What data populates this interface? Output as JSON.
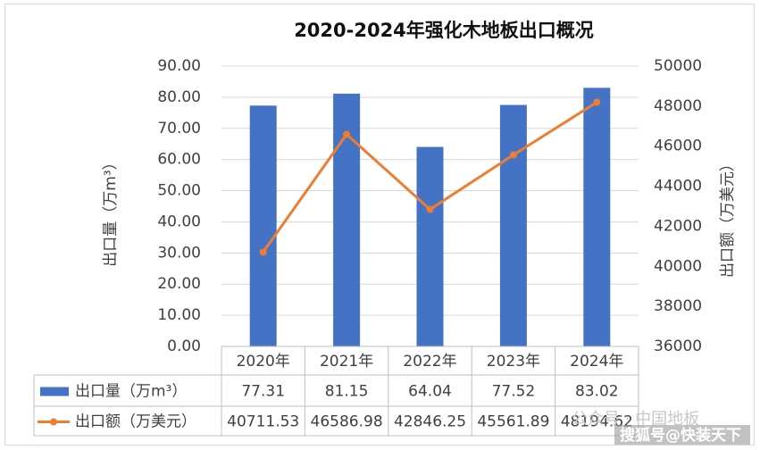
{
  "chart_data": {
    "type": "bar_line_table",
    "title": "2020-2024年强化木地板出口概况",
    "y_label": "出口量（万m³）",
    "y2_label": "出口额（万美元）",
    "categories": [
      "2020年",
      "2021年",
      "2022年",
      "2023年",
      "2024年"
    ],
    "series": [
      {
        "name": "出口量（万m³）",
        "type": "bar",
        "color": "#4472c4",
        "values": [
          77.31,
          81.15,
          64.04,
          77.52,
          83.02
        ]
      },
      {
        "name": "出口额（万美元）",
        "type": "line",
        "axis": "y2",
        "color": "#ed7d31",
        "values": [
          40711.53,
          46586.98,
          42846.25,
          45561.89,
          48194.62
        ]
      }
    ],
    "ylim": [
      0,
      90
    ],
    "yticks": [
      {
        "value": 0,
        "label": "0.00"
      },
      {
        "value": 10,
        "label": "10.00"
      },
      {
        "value": 20,
        "label": "20.00"
      },
      {
        "value": 30,
        "label": "30.00"
      },
      {
        "value": 40,
        "label": "40.00"
      },
      {
        "value": 50,
        "label": "50.00"
      },
      {
        "value": 60,
        "label": "60.00"
      },
      {
        "value": 70,
        "label": "70.00"
      },
      {
        "value": 80,
        "label": "80.00"
      },
      {
        "value": 90,
        "label": "90.00"
      }
    ],
    "y2lim": [
      36000,
      50000
    ],
    "y2ticks": [
      36000,
      38000,
      40000,
      42000,
      44000,
      46000,
      48000,
      50000
    ],
    "grid": true,
    "watermarks": [
      "公众号 · 中国地板",
      "搜狐号@快装天下"
    ]
  }
}
